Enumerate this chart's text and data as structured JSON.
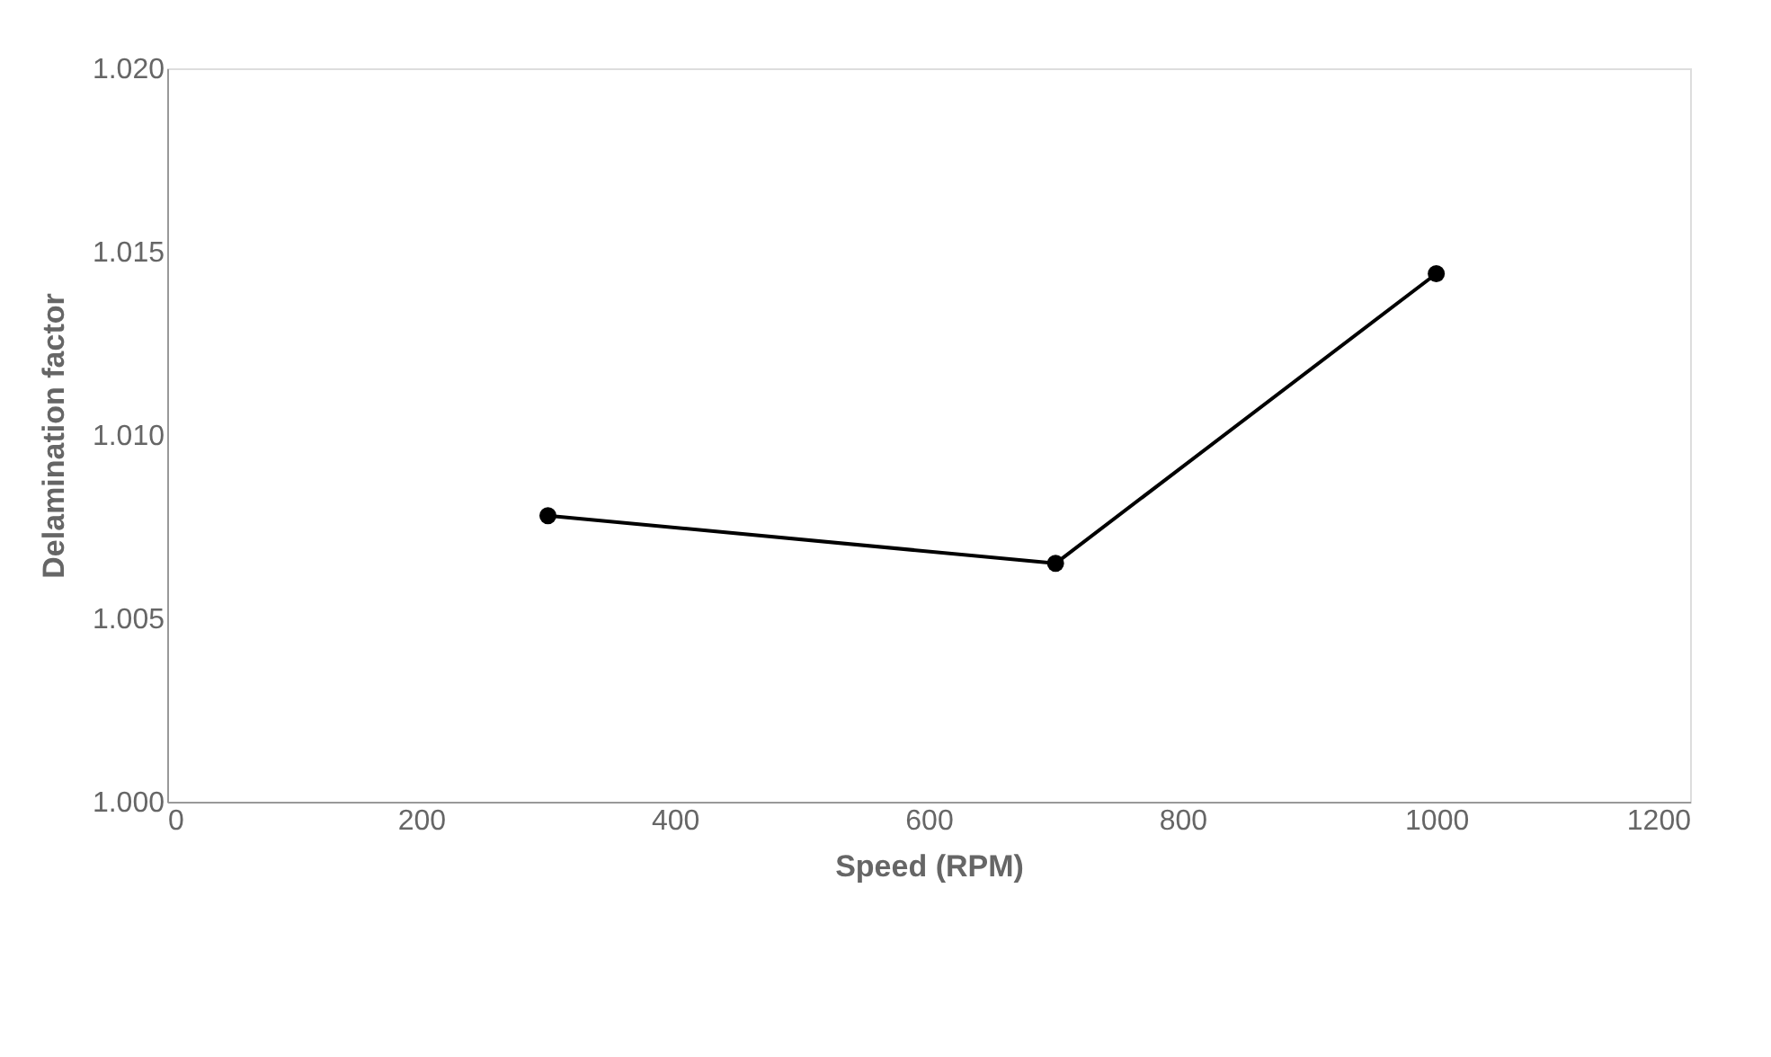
{
  "chart_data": {
    "type": "line",
    "xlabel": "Speed (RPM)",
    "ylabel": "Delamination factor",
    "x": [
      300,
      700,
      1000
    ],
    "series": [
      {
        "color": "#000000",
        "values": [
          1.0078,
          1.0065,
          1.0144
        ]
      }
    ],
    "xlim": [
      0,
      1200
    ],
    "xticks": [
      0,
      200,
      400,
      600,
      800,
      1000,
      1200
    ],
    "ylim": [
      1.0,
      1.02
    ],
    "yticks": [
      {
        "value": 1.0,
        "label": "1.000"
      },
      {
        "value": 1.005,
        "label": "1.005"
      },
      {
        "value": 1.01,
        "label": "1.010"
      },
      {
        "value": 1.015,
        "label": "1.015"
      },
      {
        "value": 1.02,
        "label": "1.020"
      }
    ],
    "grid": false,
    "marker": "circle",
    "line_style": "solid"
  }
}
